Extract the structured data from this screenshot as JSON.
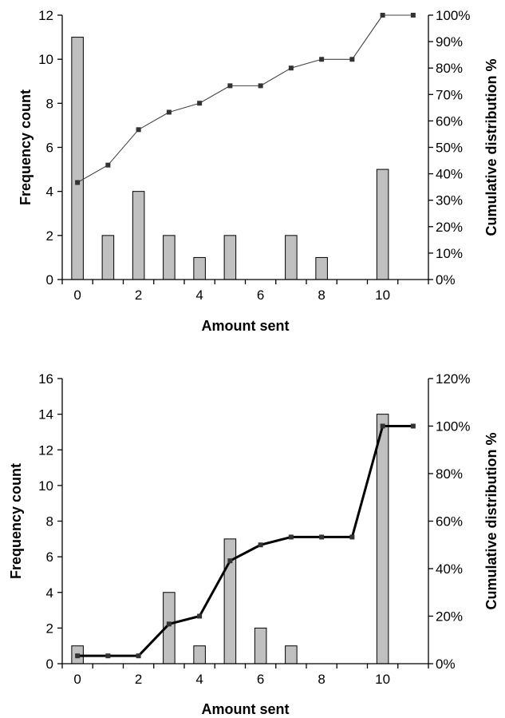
{
  "chart_data": [
    {
      "type": "bar",
      "xlabel": "Amount  sent",
      "ylabel": "Frequency count",
      "y2label": "Cumulative distribution %",
      "xlim": [
        -0.5,
        11.5
      ],
      "ylim": [
        0,
        12
      ],
      "y2lim": [
        0,
        1.0
      ],
      "xticks": [
        0,
        2,
        4,
        6,
        8,
        10
      ],
      "xtick_labels": [
        "0",
        "2",
        "4",
        "6",
        "8",
        "10"
      ],
      "yticks": [
        0,
        2,
        4,
        6,
        8,
        10,
        12
      ],
      "ytick_labels": [
        "0",
        "2",
        "4",
        "6",
        "8",
        "10",
        "12"
      ],
      "y2ticks": [
        0,
        0.1,
        0.2,
        0.3,
        0.4,
        0.5,
        0.6,
        0.7,
        0.8,
        0.9,
        1.0
      ],
      "y2tick_labels": [
        "0%",
        "10%",
        "20%",
        "30%",
        "40%",
        "50%",
        "60%",
        "70%",
        "80%",
        "90%",
        "100%"
      ],
      "grid": false,
      "series": [
        {
          "kind": "bar",
          "axis": "left",
          "x": [
            0,
            1,
            2,
            3,
            4,
            5,
            6,
            7,
            8,
            9,
            10,
            11
          ],
          "values": [
            11,
            2,
            4,
            2,
            1,
            2,
            0,
            2,
            1,
            0,
            5,
            0
          ]
        },
        {
          "kind": "line",
          "axis": "right",
          "line_weight": "thin",
          "x": [
            0,
            1,
            2,
            3,
            4,
            5,
            6,
            7,
            8,
            9,
            10,
            11
          ],
          "values": [
            0.367,
            0.433,
            0.567,
            0.633,
            0.667,
            0.733,
            0.733,
            0.8,
            0.833,
            0.833,
            1.0,
            1.0
          ]
        }
      ]
    },
    {
      "type": "bar",
      "xlabel": "Amount sent",
      "ylabel": "Frequency count",
      "y2label": "Cumulative distribution %",
      "xlim": [
        -0.5,
        11.5
      ],
      "ylim": [
        0,
        16
      ],
      "y2lim": [
        0,
        1.2
      ],
      "xticks": [
        0,
        2,
        4,
        6,
        8,
        10
      ],
      "xtick_labels": [
        "0",
        "2",
        "4",
        "6",
        "8",
        "10"
      ],
      "yticks": [
        0,
        2,
        4,
        6,
        8,
        10,
        12,
        14,
        16
      ],
      "ytick_labels": [
        "0",
        "2",
        "4",
        "6",
        "8",
        "10",
        "12",
        "14",
        "16"
      ],
      "y2ticks": [
        0,
        0.2,
        0.4,
        0.6,
        0.8,
        1.0,
        1.2
      ],
      "y2tick_labels": [
        "0%",
        "20%",
        "40%",
        "60%",
        "80%",
        "100%",
        "120%"
      ],
      "grid": false,
      "series": [
        {
          "kind": "bar",
          "axis": "left",
          "x": [
            0,
            1,
            2,
            3,
            4,
            5,
            6,
            7,
            8,
            9,
            10,
            11
          ],
          "values": [
            1,
            0,
            0,
            4,
            1,
            7,
            2,
            1,
            0,
            0,
            14,
            0
          ]
        },
        {
          "kind": "line",
          "axis": "right",
          "line_weight": "thick",
          "x": [
            0,
            1,
            2,
            3,
            4,
            5,
            6,
            7,
            8,
            9,
            10,
            11
          ],
          "values": [
            0.033,
            0.033,
            0.033,
            0.167,
            0.2,
            0.433,
            0.5,
            0.533,
            0.533,
            0.533,
            1.0,
            1.0
          ]
        }
      ]
    }
  ]
}
